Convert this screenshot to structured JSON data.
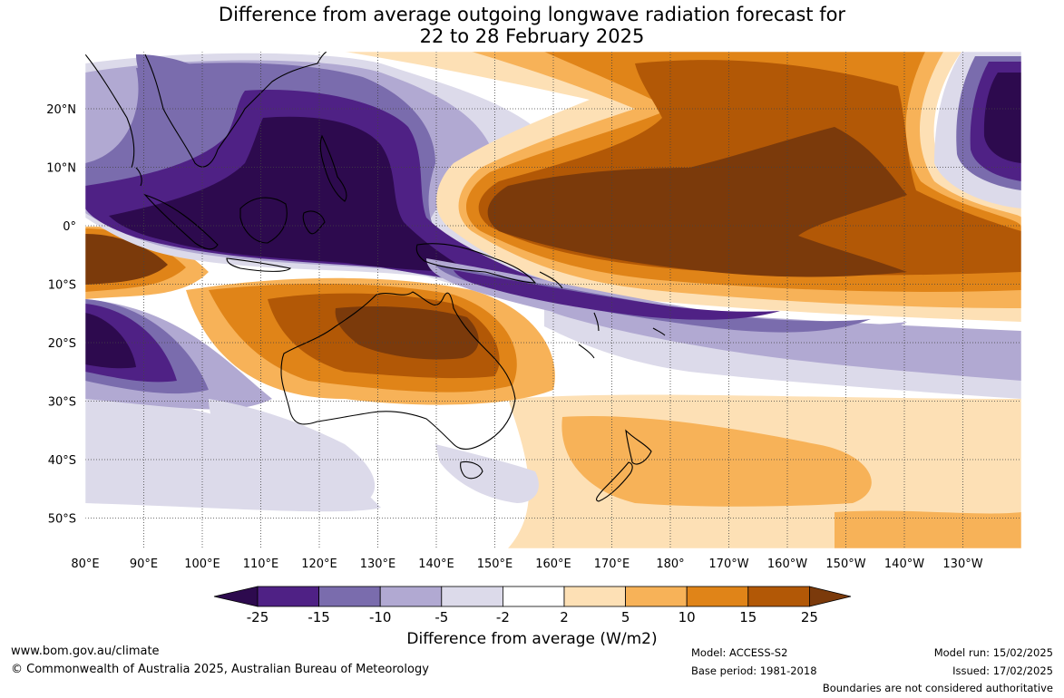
{
  "title": {
    "line1": "Difference from average outgoing longwave radiation forecast for",
    "line2": "22 to 28 February 2025"
  },
  "map": {
    "lon_labels": [
      "80°E",
      "90°E",
      "100°E",
      "110°E",
      "120°E",
      "130°E",
      "140°E",
      "150°E",
      "160°E",
      "170°E",
      "180°",
      "170°W",
      "160°W",
      "150°W",
      "140°W",
      "130°W"
    ],
    "lat_labels": [
      "20°N",
      "10°N",
      "0°",
      "10°S",
      "20°S",
      "30°S",
      "40°S",
      "50°S"
    ]
  },
  "legend": {
    "labels": [
      "-25",
      "-15",
      "-10",
      "-5",
      "-2",
      "2",
      "5",
      "10",
      "15",
      "25"
    ],
    "colors": [
      "#2d0a4e",
      "#4f2185",
      "#7a6cad",
      "#b1a9d2",
      "#dcdaea",
      "#ffffff",
      "#fde0b5",
      "#f7b258",
      "#e08418",
      "#b25806",
      "#7b3a0b"
    ],
    "unit": "Difference from average (W/m2)"
  },
  "footer": {
    "website": "www.bom.gov.au/climate",
    "copyright": "© Commonwealth of Australia 2025, Australian Bureau of Meteorology",
    "model": "Model: ACCESS-S2",
    "base_period": "Base period: 1981-2018",
    "model_run": "Model run: 15/02/2025",
    "issued": "Issued: 17/02/2025",
    "boundaries_note": "Boundaries are not considered authoritative"
  }
}
